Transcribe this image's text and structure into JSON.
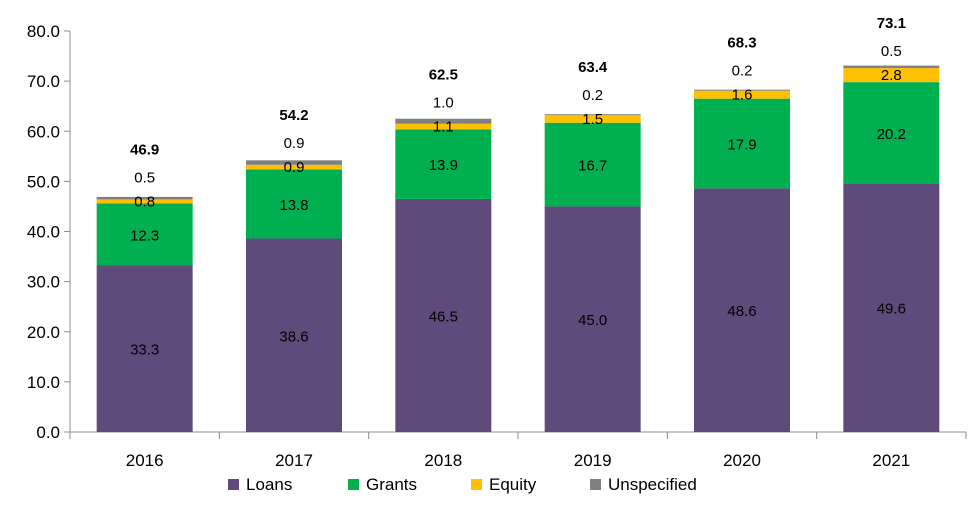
{
  "chart_data": {
    "type": "bar",
    "stacked": true,
    "categories": [
      "2016",
      "2017",
      "2018",
      "2019",
      "2020",
      "2021"
    ],
    "series": [
      {
        "name": "Loans",
        "color": "#5f4b7b",
        "values": [
          33.3,
          38.6,
          46.5,
          45.0,
          48.6,
          49.6
        ],
        "labels": [
          "33.3",
          "38.6",
          "46.5",
          "45.0",
          "48.6",
          "49.6"
        ]
      },
      {
        "name": "Grants",
        "color": "#00b050",
        "values": [
          12.3,
          13.8,
          13.9,
          16.7,
          17.9,
          20.2
        ],
        "labels": [
          "12.3",
          "13.8",
          "13.9",
          "16.7",
          "17.9",
          "20.2"
        ]
      },
      {
        "name": "Equity",
        "color": "#ffc000",
        "values": [
          0.8,
          0.9,
          1.1,
          1.5,
          1.6,
          2.8
        ],
        "labels": [
          "0.8",
          "0.9",
          "1.1",
          "1.5",
          "1.6",
          "2.8"
        ]
      },
      {
        "name": "Unspecified",
        "color": "#808080",
        "values": [
          0.5,
          0.9,
          1.0,
          0.2,
          0.2,
          0.5
        ],
        "labels": [
          "0.5",
          "0.9",
          "1.0",
          "0.2",
          "0.2",
          "0.5"
        ]
      }
    ],
    "totals": [
      46.9,
      54.2,
      62.5,
      63.4,
      68.3,
      73.1
    ],
    "total_labels": [
      "46.9",
      "54.2",
      "62.5",
      "63.4",
      "68.3",
      "73.1"
    ],
    "ylim": [
      0,
      80
    ],
    "yticks": [
      "0.0",
      "10.0",
      "20.0",
      "30.0",
      "40.0",
      "50.0",
      "60.0",
      "70.0",
      "80.0"
    ],
    "title": "",
    "xlabel": "",
    "ylabel": "",
    "grid": false,
    "legend_position": "bottom"
  }
}
